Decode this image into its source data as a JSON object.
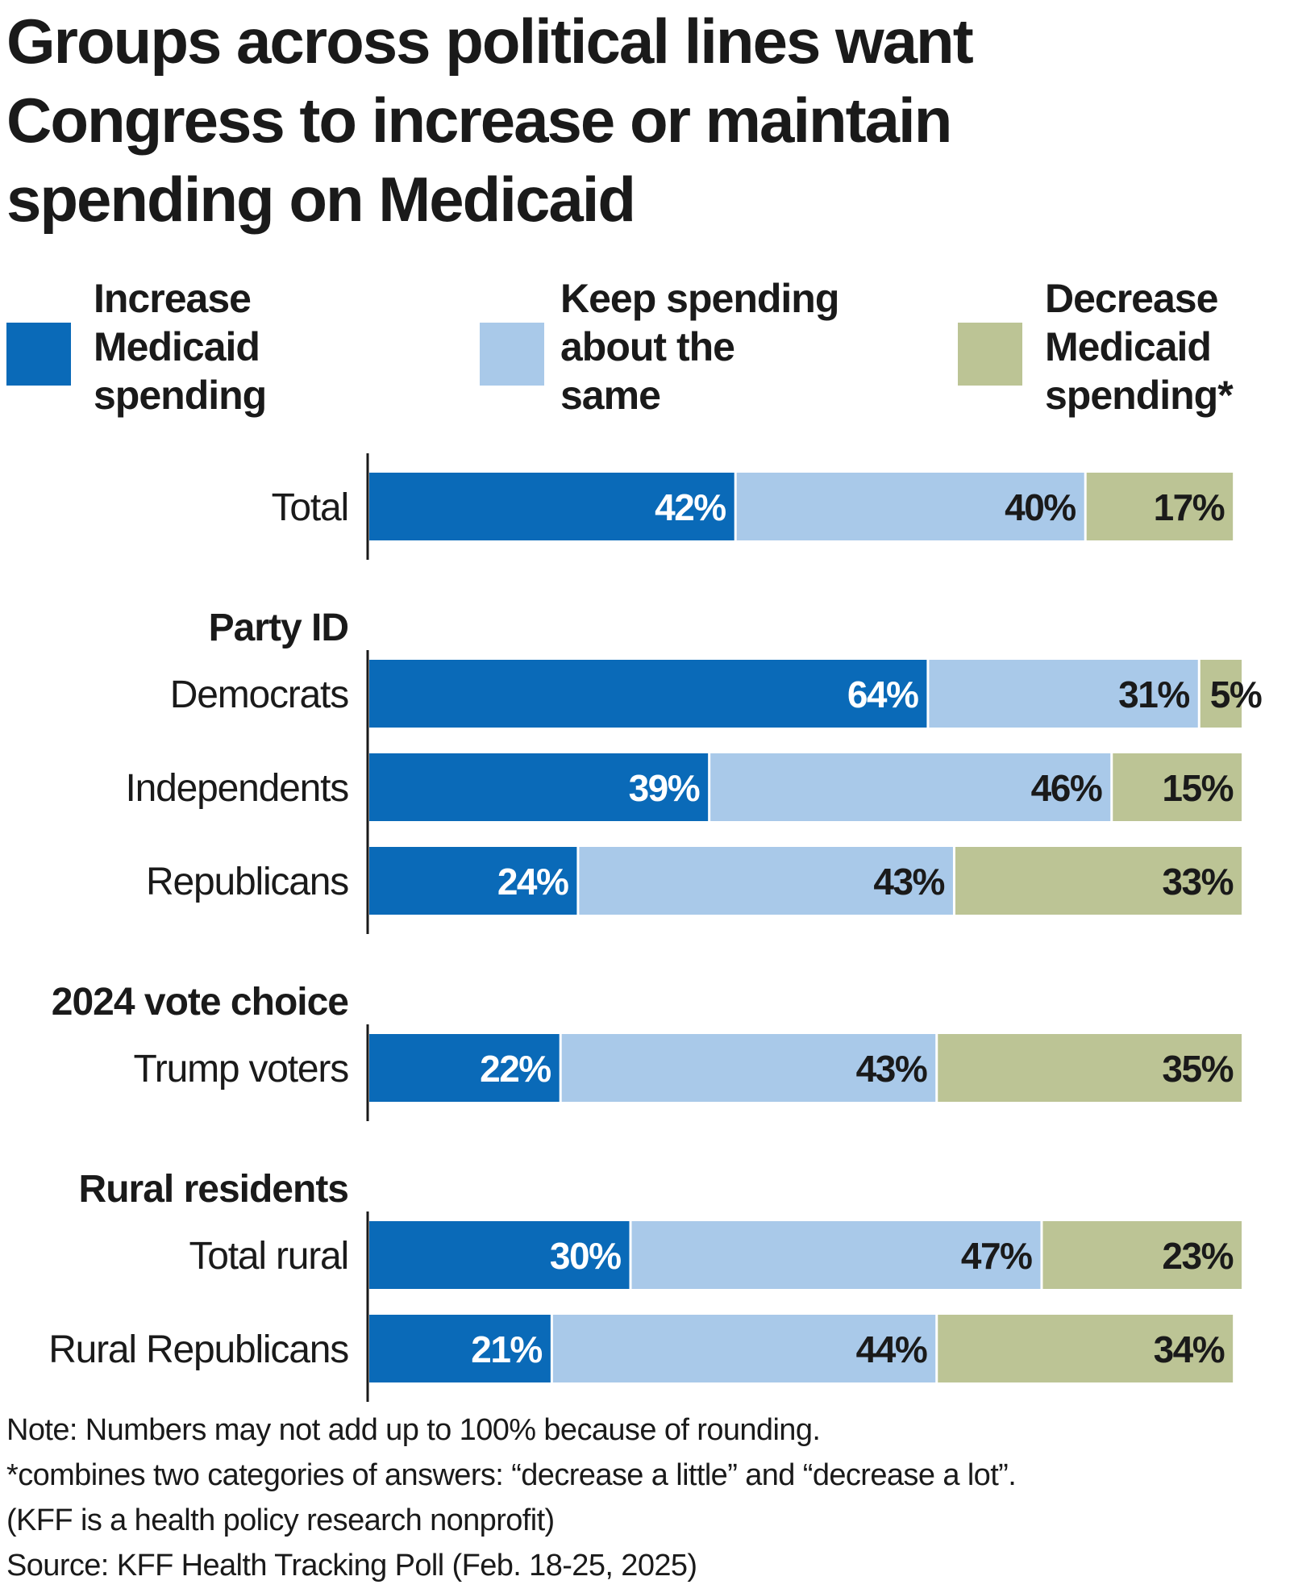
{
  "chart_data": {
    "type": "bar",
    "orientation": "horizontal",
    "stacked": true,
    "title": "Groups across political lines want Congress to increase or maintain spending on Medicaid",
    "xlim": [
      0,
      100
    ],
    "legend": [
      {
        "key": "increase",
        "label_lines": [
          "Increase",
          "Medicaid",
          "spending"
        ],
        "color": "#0a6ab8"
      },
      {
        "key": "same",
        "label_lines": [
          "Keep spending",
          "about the",
          "same"
        ],
        "color": "#a9c9e9"
      },
      {
        "key": "decrease",
        "label_lines": [
          "Decrease",
          "Medicaid",
          "spending*"
        ],
        "color": "#bcc495"
      }
    ],
    "series": [
      {
        "name": "Increase Medicaid spending",
        "key": "increase"
      },
      {
        "name": "Keep spending about the same",
        "key": "same"
      },
      {
        "name": "Decrease Medicaid spending*",
        "key": "decrease"
      }
    ],
    "groups": [
      {
        "heading": "",
        "rows": [
          {
            "category": "Total",
            "values": [
              42,
              40,
              17
            ],
            "labels": [
              "42%",
              "40%",
              "17%"
            ]
          }
        ]
      },
      {
        "heading": "Party ID",
        "rows": [
          {
            "category": "Democrats",
            "values": [
              64,
              31,
              5
            ],
            "labels": [
              "64%",
              "31%",
              "5%"
            ]
          },
          {
            "category": "Independents",
            "values": [
              39,
              46,
              15
            ],
            "labels": [
              "39%",
              "46%",
              "15%"
            ]
          },
          {
            "category": "Republicans",
            "values": [
              24,
              43,
              33
            ],
            "labels": [
              "24%",
              "43%",
              "33%"
            ]
          }
        ]
      },
      {
        "heading": "2024 vote choice",
        "rows": [
          {
            "category": "Trump voters",
            "values": [
              22,
              43,
              35
            ],
            "labels": [
              "22%",
              "43%",
              "35%"
            ]
          }
        ]
      },
      {
        "heading": "Rural residents",
        "rows": [
          {
            "category": "Total rural",
            "values": [
              30,
              47,
              23
            ],
            "labels": [
              "30%",
              "47%",
              "23%"
            ]
          },
          {
            "category": "Rural Republicans",
            "values": [
              21,
              44,
              34
            ],
            "labels": [
              "21%",
              "44%",
              "34%"
            ]
          }
        ]
      }
    ]
  },
  "title_lines": [
    "Groups across political lines want",
    "Congress to increase or maintain",
    "spending on Medicaid"
  ],
  "notes": [
    "Note: Numbers may not add up to 100% because of rounding.",
    "*combines two categories of answers: “decrease  a little” and “decrease a lot”.",
    "(KFF is a health policy research nonprofit)",
    "Source: KFF Health Tracking Poll (Feb. 18-25, 2025)"
  ]
}
